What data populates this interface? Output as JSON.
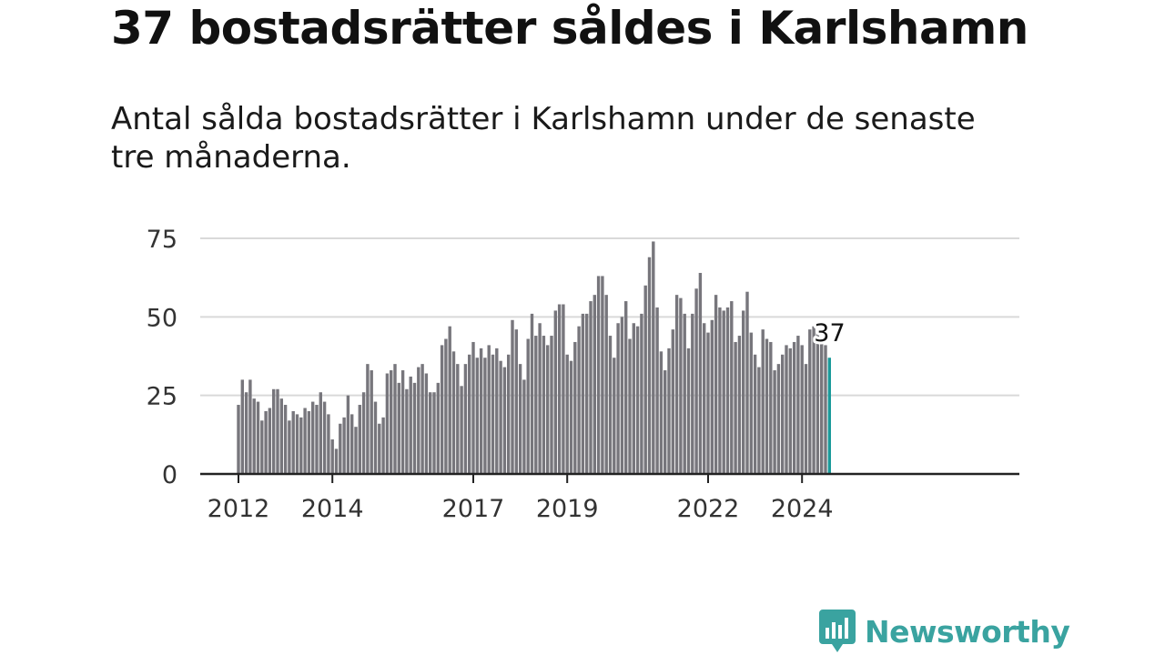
{
  "header": {
    "title": "37 bostadsrätter såldes i Karlshamn",
    "subtitle": "Antal sålda bostadsrätter i Karlshamn under de senaste tre månaderna."
  },
  "brand": {
    "name": "Newsworthy",
    "color": "#3aa3a0"
  },
  "chart_data": {
    "type": "bar",
    "title": "37 bostadsrätter såldes i Karlshamn",
    "subtitle": "Antal sålda bostadsrätter i Karlshamn under de senaste tre månaderna.",
    "xlabel": "",
    "ylabel": "",
    "ylim": [
      0,
      75
    ],
    "yticks": [
      0,
      25,
      50,
      75
    ],
    "xtick_labels": [
      "2012",
      "2014",
      "2017",
      "2019",
      "2022",
      "2024"
    ],
    "x_start": "2012-01",
    "x_frequency": "monthly",
    "grid": true,
    "bar_color": "#77767c",
    "highlight_color": "#1a9a9a",
    "highlight_label": "37",
    "values": [
      22,
      30,
      26,
      30,
      24,
      23,
      17,
      20,
      21,
      27,
      27,
      24,
      22,
      17,
      20,
      19,
      18,
      21,
      20,
      23,
      22,
      26,
      23,
      19,
      11,
      8,
      16,
      18,
      25,
      19,
      15,
      22,
      26,
      35,
      33,
      23,
      16,
      18,
      32,
      33,
      35,
      29,
      33,
      27,
      31,
      29,
      34,
      35,
      32,
      26,
      26,
      29,
      41,
      43,
      47,
      39,
      35,
      28,
      35,
      38,
      42,
      37,
      40,
      37,
      41,
      38,
      40,
      36,
      34,
      38,
      49,
      46,
      35,
      30,
      43,
      51,
      44,
      48,
      44,
      41,
      44,
      52,
      54,
      54,
      38,
      36,
      42,
      47,
      51,
      51,
      55,
      57,
      63,
      63,
      57,
      44,
      37,
      48,
      50,
      55,
      43,
      48,
      47,
      51,
      60,
      69,
      74,
      53,
      39,
      33,
      40,
      46,
      57,
      56,
      51,
      40,
      51,
      59,
      64,
      48,
      45,
      49,
      57,
      53,
      52,
      53,
      55,
      42,
      44,
      52,
      58,
      45,
      38,
      34,
      46,
      43,
      42,
      33,
      35,
      38,
      41,
      40,
      42,
      44,
      41,
      35,
      46,
      47,
      45,
      42,
      41,
      37
    ]
  }
}
